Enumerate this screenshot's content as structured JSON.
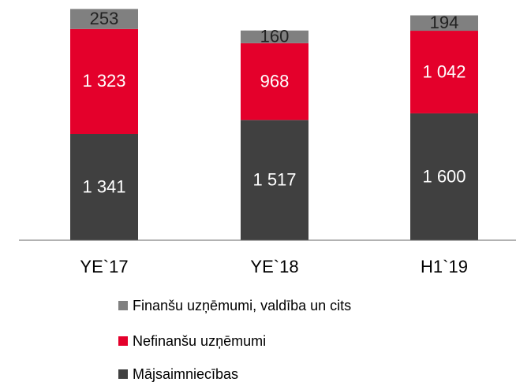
{
  "chart_data": {
    "type": "stacked_bar",
    "categories": [
      "YE`17",
      "YE`18",
      "H1`19"
    ],
    "series": [
      {
        "name": "Mājsaimniecības",
        "color": "#404040",
        "label_color": "#ffffff",
        "values": [
          1341,
          1517,
          1600
        ],
        "value_labels": [
          "1 341",
          "1 517",
          "1 600"
        ]
      },
      {
        "name": "Nefinanšu uzņēmumi",
        "color": "#e4002b",
        "label_color": "#ffffff",
        "values": [
          1323,
          968,
          1042
        ],
        "value_labels": [
          "1 323",
          "968",
          "1 042"
        ]
      },
      {
        "name": "Finanšu uzņēmumi, valdība un cits",
        "color": "#808080",
        "label_color": "#222222",
        "values": [
          253,
          160,
          194
        ],
        "value_labels": [
          "253",
          "160",
          "194"
        ]
      }
    ],
    "ylim": [
      0,
      3000
    ],
    "legend": "bottom"
  }
}
